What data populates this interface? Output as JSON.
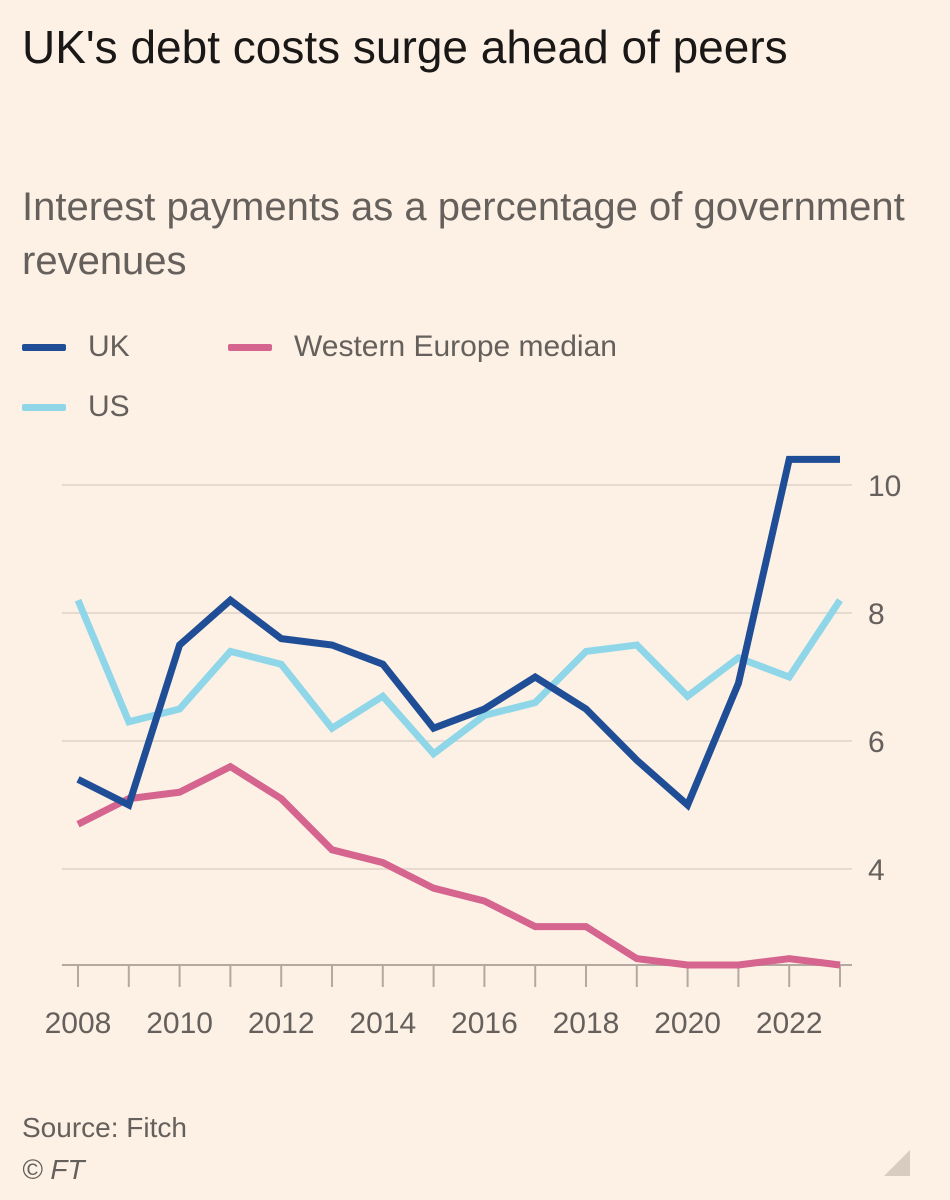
{
  "title": "UK's debt costs surge ahead of peers",
  "subtitle": "Interest payments as a percentage of government revenues",
  "source": "Source: Fitch",
  "copyright": "© FT",
  "chart_data": {
    "type": "line",
    "title": "UK's debt costs surge ahead of peers",
    "subtitle": "Interest payments as a percentage of government revenues",
    "xlabel": "",
    "ylabel": "",
    "x": [
      2008,
      2009,
      2010,
      2011,
      2012,
      2013,
      2014,
      2015,
      2016,
      2017,
      2018,
      2019,
      2020,
      2021,
      2022,
      2023
    ],
    "xlim": [
      2008,
      2023
    ],
    "ylim": [
      2.5,
      10.5
    ],
    "yticks": [
      4,
      6,
      8,
      10
    ],
    "xticks": [
      2008,
      2010,
      2012,
      2014,
      2016,
      2018,
      2020,
      2022
    ],
    "ytick_labels": [
      "4",
      "6",
      "8",
      "10"
    ],
    "xtick_labels": [
      "2008",
      "2010",
      "2012",
      "2014",
      "2016",
      "2018",
      "2020",
      "2022"
    ],
    "grid": true,
    "series": [
      {
        "name": "UK",
        "color": "#1f4e96",
        "values": [
          5.4,
          5.0,
          7.5,
          8.2,
          7.6,
          7.5,
          7.2,
          6.2,
          6.5,
          7.0,
          6.5,
          5.7,
          5.0,
          6.9,
          10.4,
          10.4
        ]
      },
      {
        "name": "US",
        "color": "#8fd7e8",
        "values": [
          8.2,
          6.3,
          6.5,
          7.4,
          7.2,
          6.2,
          6.7,
          5.8,
          6.4,
          6.6,
          7.4,
          7.5,
          6.7,
          7.3,
          7.0,
          8.2
        ]
      },
      {
        "name": "Western Europe median",
        "color": "#d5648e",
        "values": [
          4.7,
          5.1,
          5.2,
          5.6,
          5.1,
          4.3,
          4.1,
          3.7,
          3.5,
          3.1,
          3.1,
          2.6,
          2.5,
          2.5,
          2.6,
          2.5
        ]
      }
    ]
  }
}
